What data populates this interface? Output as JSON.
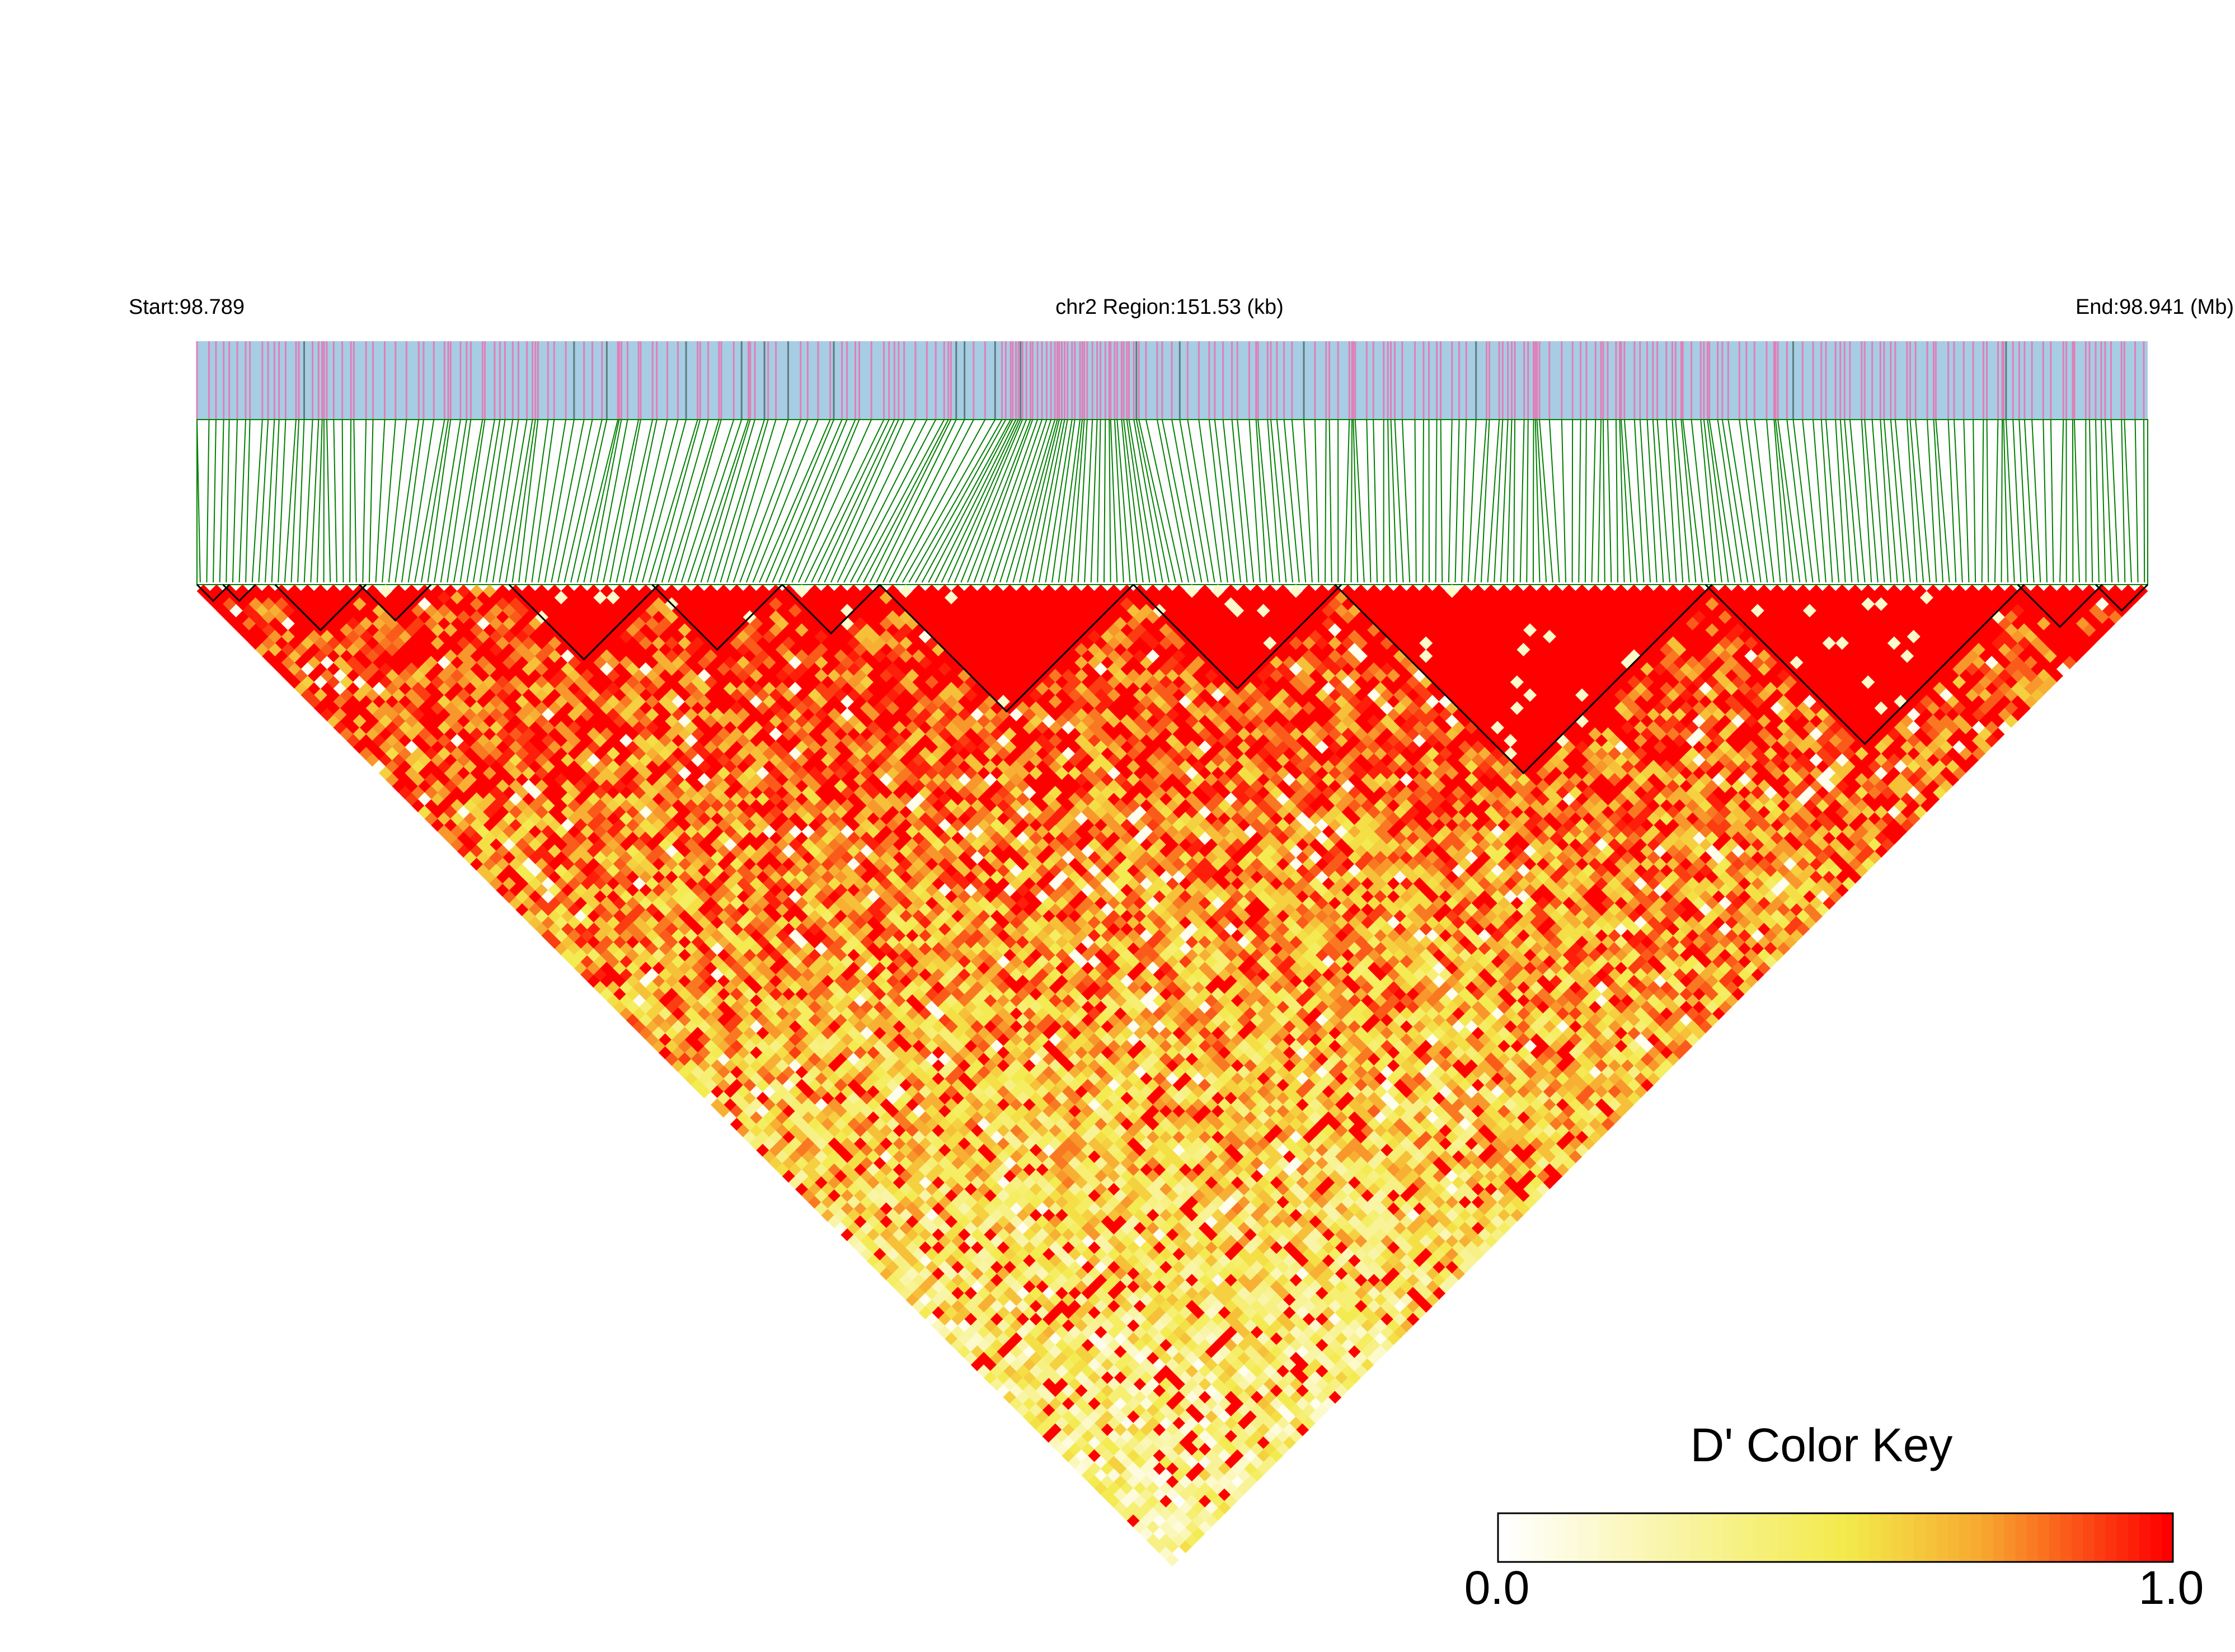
{
  "chart_data": {
    "type": "heatmap",
    "subtype": "linkage-disequilibrium-triangle",
    "chromosome": "chr2",
    "start_label": "Start:98.789",
    "region_label": "chr2 Region:151.53 (kb)",
    "end_label": "End:98.941 (Mb)",
    "start_mb": 98.789,
    "end_mb": 98.941,
    "region_kb": 151.53,
    "metric": "D'",
    "color_key": {
      "title": "D' Color Key",
      "min_label": "0.0",
      "max_label": "1.0",
      "min": 0.0,
      "max": 1.0,
      "colors": [
        "#ffffff",
        "#f3ea4a",
        "#f7a930",
        "#ff0000"
      ]
    },
    "n_snps_approx": 300,
    "haplotype_blocks_fraction": [
      [
        0.0,
        0.015
      ],
      [
        0.015,
        0.03
      ],
      [
        0.04,
        0.085
      ],
      [
        0.085,
        0.12
      ],
      [
        0.16,
        0.235
      ],
      [
        0.235,
        0.3
      ],
      [
        0.3,
        0.35
      ],
      [
        0.35,
        0.48
      ],
      [
        0.48,
        0.585
      ],
      [
        0.585,
        0.775
      ],
      [
        0.775,
        0.935
      ],
      [
        0.935,
        0.975
      ],
      [
        0.975,
        1.0
      ]
    ],
    "block_dprime": 1.0,
    "gene_track_colors": {
      "background": "#a6cde4",
      "variant": "#e07fb8",
      "dark": "#5f7c7c",
      "connector": "#008000"
    }
  }
}
